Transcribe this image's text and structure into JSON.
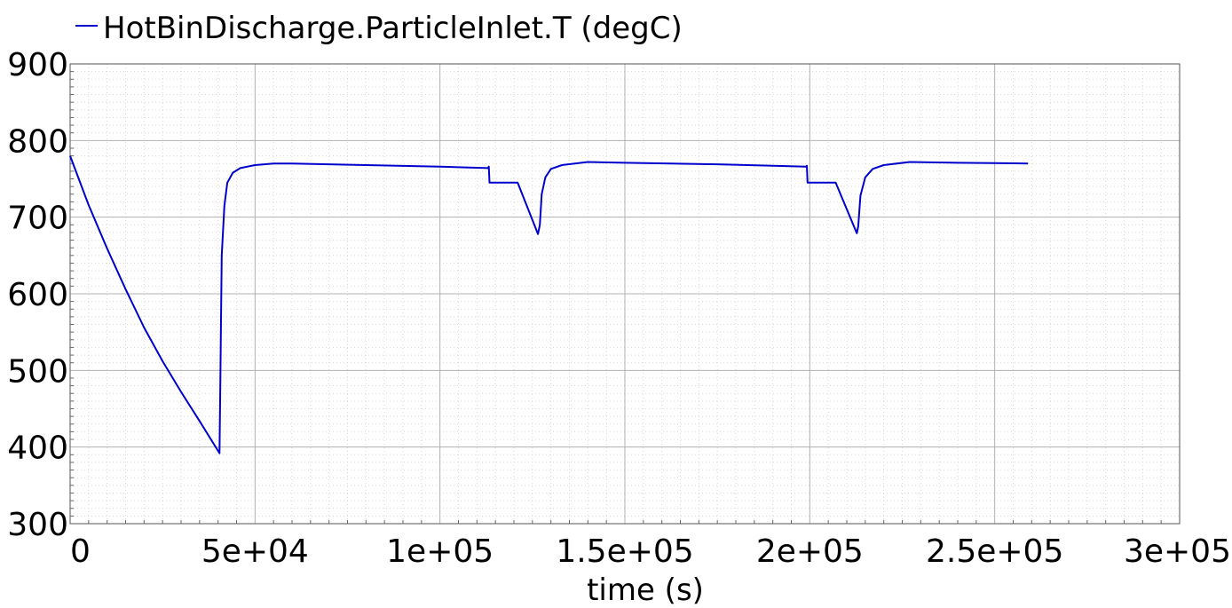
{
  "chart_data": {
    "type": "line",
    "title": "",
    "xlabel": "time (s)",
    "ylabel": "",
    "xlim": [
      0,
      300000
    ],
    "ylim": [
      300,
      900
    ],
    "grid": true,
    "legend_position": "top-left",
    "x_tick_values": [
      0,
      50000,
      100000,
      150000,
      200000,
      250000,
      300000
    ],
    "x_tick_labels": [
      "0",
      "5e+04",
      "1e+05",
      "1.5e+05",
      "2e+05",
      "2.5e+05",
      "3e+05"
    ],
    "y_tick_values": [
      300,
      400,
      500,
      600,
      700,
      800,
      900
    ],
    "y_tick_labels": [
      "300",
      "400",
      "500",
      "600",
      "700",
      "800",
      "900"
    ],
    "series": [
      {
        "name": "HotBinDischarge.ParticleInlet.T (degC)",
        "color": "#0000cc",
        "points": [
          [
            0,
            780
          ],
          [
            5000,
            716
          ],
          [
            10000,
            659
          ],
          [
            15000,
            606
          ],
          [
            20000,
            556
          ],
          [
            25000,
            512
          ],
          [
            30000,
            472
          ],
          [
            35000,
            434
          ],
          [
            40400,
            392
          ],
          [
            40600,
            480
          ],
          [
            41000,
            650
          ],
          [
            41700,
            715
          ],
          [
            42500,
            745
          ],
          [
            44000,
            758
          ],
          [
            46000,
            764
          ],
          [
            50000,
            768
          ],
          [
            55000,
            770
          ],
          [
            60000,
            770
          ],
          [
            80000,
            768
          ],
          [
            100000,
            766
          ],
          [
            113000,
            764
          ],
          [
            113200,
            766
          ],
          [
            113400,
            745
          ],
          [
            121000,
            745
          ],
          [
            126500,
            678
          ],
          [
            127000,
            690
          ],
          [
            127500,
            730
          ],
          [
            128500,
            752
          ],
          [
            130000,
            763
          ],
          [
            133000,
            768
          ],
          [
            140000,
            772
          ],
          [
            150000,
            771
          ],
          [
            175000,
            769
          ],
          [
            199000,
            766
          ],
          [
            199200,
            767
          ],
          [
            199400,
            745
          ],
          [
            207000,
            745
          ],
          [
            212700,
            679
          ],
          [
            213100,
            688
          ],
          [
            213700,
            728
          ],
          [
            215000,
            752
          ],
          [
            217000,
            763
          ],
          [
            220000,
            768
          ],
          [
            227000,
            772
          ],
          [
            240000,
            771
          ],
          [
            259000,
            770
          ]
        ]
      }
    ]
  }
}
